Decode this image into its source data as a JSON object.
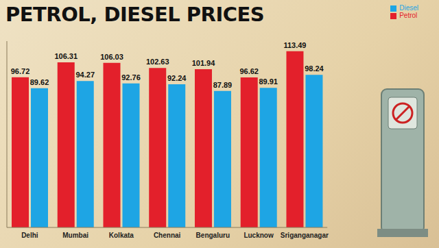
{
  "chart_data": {
    "type": "bar",
    "title": "PETROL, DIESEL PRICES",
    "categories": [
      "Delhi",
      "Mumbai",
      "Kolkata",
      "Chennai",
      "Bengaluru",
      "Lucknow",
      "Sriganganagar"
    ],
    "series": [
      {
        "name": "Petrol",
        "color": "#e3202b",
        "values": [
          96.72,
          106.31,
          106.03,
          102.63,
          101.94,
          96.62,
          113.49
        ]
      },
      {
        "name": "Diesel",
        "color": "#1ea5e4",
        "values": [
          89.62,
          94.27,
          92.76,
          92.24,
          87.89,
          89.91,
          98.24
        ]
      }
    ],
    "ylim": [
      0,
      120
    ],
    "grid": false,
    "legend": "upper right",
    "data_labels": true,
    "tick_labels": "x"
  }
}
